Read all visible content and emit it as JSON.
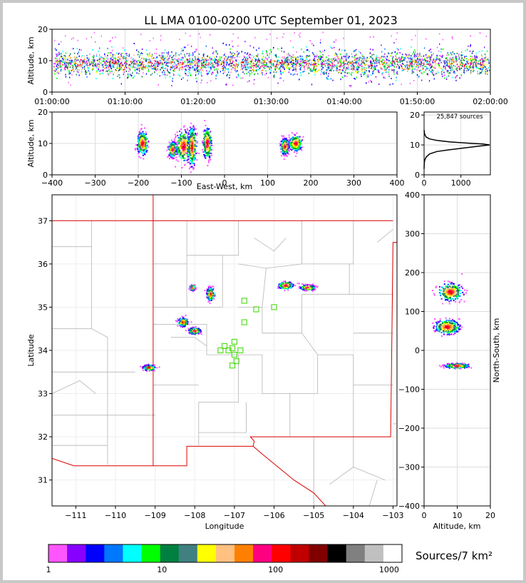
{
  "title": "LL LMA 0100-0200 UTC September 01, 2023",
  "sources_label": "25,847 sources",
  "colorbar": {
    "label": "Sources/7 km²",
    "colors": [
      "#ff55ff",
      "#8800ff",
      "#0000ff",
      "#0077ff",
      "#00ffff",
      "#00ff00",
      "#008040",
      "#408080",
      "#ffff00",
      "#ffc080",
      "#ff8000",
      "#ff0080",
      "#ff0000",
      "#c00000",
      "#800000",
      "#000000",
      "#808080",
      "#c0c0c0",
      "#ffffff"
    ],
    "tick_labels": [
      "1",
      "10",
      "100",
      "1000"
    ]
  },
  "chart_data": [
    {
      "type": "scatter",
      "panel": "altitude-time",
      "ylabel": "Altitude, km",
      "ylim": [
        0,
        20
      ],
      "y_ticks": [
        "0",
        "10",
        "20"
      ],
      "x_ticks": [
        "01:00:00",
        "01:10:00",
        "01:20:00",
        "01:30:00",
        "01:40:00",
        "01:50:00",
        "02:00:00"
      ],
      "note_band_altitude_km": [
        5,
        14
      ]
    },
    {
      "type": "scatter",
      "panel": "altitude-eastwest",
      "xlabel": "East-West, km",
      "ylabel": "Altitude, km",
      "xlim": [
        -400,
        400
      ],
      "ylim": [
        0,
        20
      ],
      "x_ticks": [
        "−400",
        "−300",
        "−200",
        "−100",
        "0",
        "100",
        "200",
        "300",
        "400"
      ],
      "y_ticks": [
        "0",
        "10",
        "20"
      ],
      "clusters": [
        {
          "x": -190,
          "y": 10,
          "spread_x": 10,
          "spread_y": 3
        },
        {
          "x": -120,
          "y": 8,
          "spread_x": 8,
          "spread_y": 2
        },
        {
          "x": -95,
          "y": 9,
          "spread_x": 14,
          "spread_y": 4
        },
        {
          "x": -75,
          "y": 9,
          "spread_x": 8,
          "spread_y": 5
        },
        {
          "x": -40,
          "y": 10,
          "spread_x": 8,
          "spread_y": 4
        },
        {
          "x": 140,
          "y": 9,
          "spread_x": 8,
          "spread_y": 2
        },
        {
          "x": 165,
          "y": 10,
          "spread_x": 12,
          "spread_y": 2
        }
      ]
    },
    {
      "type": "line",
      "panel": "altitude-histogram",
      "x_ticks": [
        "0",
        "1000"
      ],
      "y_ticks": [
        "0",
        "10",
        "20"
      ],
      "xlim": [
        0,
        1800
      ],
      "ylim": [
        0,
        21
      ],
      "x": [
        0,
        5,
        20,
        60,
        150,
        350,
        700,
        1100,
        1500,
        1780,
        1600,
        1200,
        700,
        350,
        150,
        60,
        30,
        10,
        0
      ],
      "y": [
        2,
        4,
        5,
        6,
        7,
        7.8,
        8.4,
        9.0,
        9.6,
        10,
        10.3,
        10.6,
        11,
        11.5,
        12,
        12.6,
        13.2,
        14,
        15
      ]
    },
    {
      "type": "scatter",
      "panel": "plan-view",
      "xlabel": "Longitude",
      "ylabel": "Latitude",
      "xlim": [
        -111.6,
        -102.9
      ],
      "ylim": [
        30.4,
        37.6
      ],
      "x_ticks": [
        "−111",
        "−110",
        "−109",
        "−108",
        "−107",
        "−106",
        "−105",
        "−104",
        "−103"
      ],
      "y_ticks": [
        "31",
        "32",
        "33",
        "34",
        "35",
        "36",
        "37"
      ],
      "clusters": [
        {
          "lon": -109.15,
          "lat": 33.6,
          "spread_lon": 0.12,
          "spread_lat": 0.05
        },
        {
          "lon": -108.3,
          "lat": 34.65,
          "spread_lon": 0.1,
          "spread_lat": 0.08
        },
        {
          "lon": -108.0,
          "lat": 34.45,
          "spread_lon": 0.12,
          "spread_lat": 0.06
        },
        {
          "lon": -107.6,
          "lat": 35.3,
          "spread_lon": 0.08,
          "spread_lat": 0.12
        },
        {
          "lon": -108.05,
          "lat": 35.45,
          "spread_lon": 0.05,
          "spread_lat": 0.05
        },
        {
          "lon": -105.7,
          "lat": 35.5,
          "spread_lon": 0.15,
          "spread_lat": 0.07
        },
        {
          "lon": -105.15,
          "lat": 35.45,
          "spread_lon": 0.15,
          "spread_lat": 0.05
        }
      ],
      "stations": [
        {
          "lon": -106.75,
          "lat": 35.15
        },
        {
          "lon": -106.45,
          "lat": 34.95
        },
        {
          "lon": -106.0,
          "lat": 35.0
        },
        {
          "lon": -106.75,
          "lat": 34.65
        },
        {
          "lon": -107.0,
          "lat": 34.2
        },
        {
          "lon": -107.05,
          "lat": 34.05
        },
        {
          "lon": -107.25,
          "lat": 34.1
        },
        {
          "lon": -107.35,
          "lat": 34.0
        },
        {
          "lon": -107.15,
          "lat": 34.0
        },
        {
          "lon": -106.85,
          "lat": 34.0
        },
        {
          "lon": -107.0,
          "lat": 33.9
        },
        {
          "lon": -106.95,
          "lat": 33.75
        },
        {
          "lon": -107.05,
          "lat": 33.65
        }
      ]
    },
    {
      "type": "scatter",
      "panel": "northsouth-altitude",
      "xlabel": "Altitude, km",
      "ylabel": "North-South, km",
      "xlim": [
        0,
        20
      ],
      "ylim": [
        -400,
        400
      ],
      "x_ticks": [
        "0",
        "10",
        "20"
      ],
      "y_ticks": [
        "−400",
        "−300",
        "−200",
        "−100",
        "0",
        "100",
        "200",
        "300",
        "400"
      ],
      "clusters": [
        {
          "x": 8,
          "y": 150,
          "spread_x": 3,
          "spread_y": 18
        },
        {
          "x": 7,
          "y": 60,
          "spread_x": 3,
          "spread_y": 15
        },
        {
          "x": 10,
          "y": -40,
          "spread_x": 3,
          "spread_y": 5
        }
      ]
    }
  ]
}
